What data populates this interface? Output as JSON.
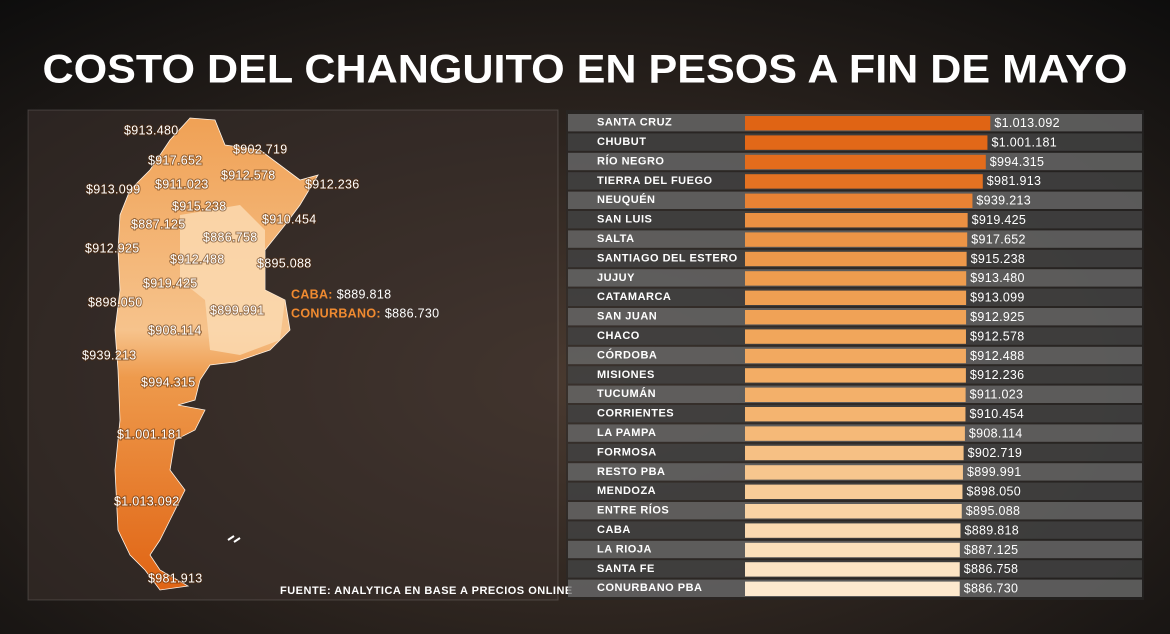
{
  "chart_data": {
    "type": "bar",
    "title": "COSTO DEL CHANGUITO EN PESOS A FIN DE MAYO",
    "categories": [
      "SANTA CRUZ",
      "CHUBUT",
      "RÍO NEGRO",
      "TIERRA DEL FUEGO",
      "NEUQUÉN",
      "SAN LUIS",
      "SALTA",
      "SANTIAGO DEL ESTERO",
      "JUJUY",
      "CATAMARCA",
      "SAN JUAN",
      "CHACO",
      "CÓRDOBA",
      "MISIONES",
      "TUCUMÁN",
      "CORRIENTES",
      "LA PAMPA",
      "FORMOSA",
      "RESTO PBA",
      "MENDOZA",
      "ENTRE RÍOS",
      "CABA",
      "LA RIOJA",
      "SANTA FE",
      "CONURBANO PBA"
    ],
    "values": [
      1013092,
      1001181,
      994315,
      981913,
      939213,
      919425,
      917652,
      915238,
      913480,
      913099,
      912925,
      912578,
      912488,
      912236,
      911023,
      910454,
      908114,
      902719,
      899991,
      898050,
      895088,
      889818,
      887125,
      886758,
      886730
    ],
    "value_labels": [
      "$1.013.092",
      "$1.001.181",
      "$994.315",
      "$981.913",
      "$939.213",
      "$919.425",
      "$917.652",
      "$915.238",
      "$913.480",
      "$913.099",
      "$912.925",
      "$912.578",
      "$912.488",
      "$912.236",
      "$911.023",
      "$910.454",
      "$908.114",
      "$902.719",
      "$899.991",
      "$898.050",
      "$895.088",
      "$889.818",
      "$887.125",
      "$886.758",
      "$886.730"
    ],
    "colors": [
      "#e06414",
      "#e26818",
      "#e36c1c",
      "#e47222",
      "#e88234",
      "#eb9042",
      "#ec9446",
      "#ed984a",
      "#ee9c4e",
      "#ef9f52",
      "#f0a256",
      "#f1a65b",
      "#f2a960",
      "#f3ad65",
      "#f3b06a",
      "#f4b470",
      "#f5b978",
      "#f6c084",
      "#f7c68e",
      "#f8cc98",
      "#f9d3a4",
      "#fad9b0",
      "#fbdfba",
      "#fce4c4",
      "#fde9ce"
    ],
    "xlim": [
      0,
      1020000
    ],
    "annotations": [
      "CABA:",
      "CONURBANO:"
    ],
    "source": "FUENTE: ANALYTICA EN BASE A PRECIOS ONLINE"
  }
}
